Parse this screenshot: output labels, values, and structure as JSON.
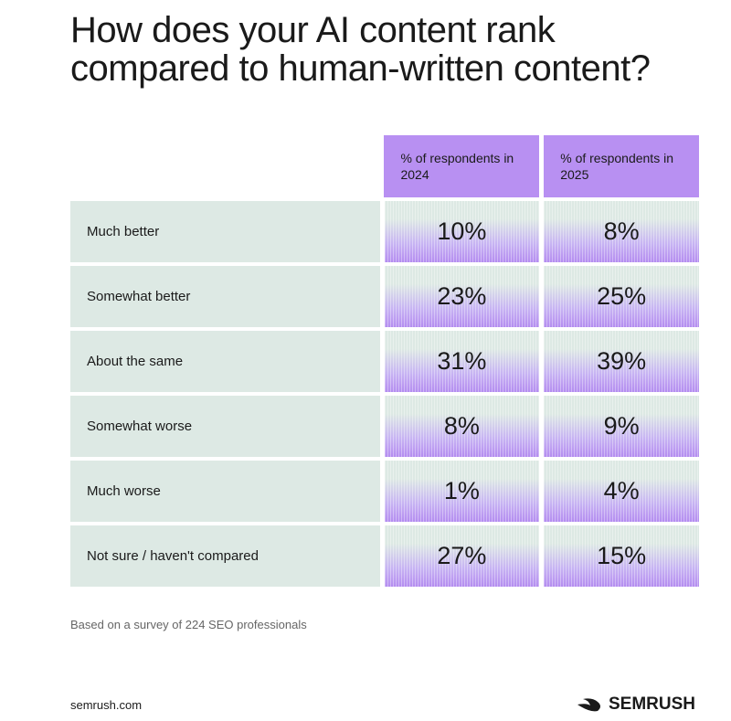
{
  "header": {
    "title": "How does your AI content rank compared to human-written content?"
  },
  "table": {
    "columns": [
      "% of respondents in 2024",
      "% of respondents in 2025"
    ],
    "rows": [
      {
        "label": "Much better",
        "cells": [
          "10%",
          "8%"
        ]
      },
      {
        "label": "Somewhat better",
        "cells": [
          "23%",
          "25%"
        ]
      },
      {
        "label": "About the same",
        "cells": [
          "31%",
          "39%"
        ]
      },
      {
        "label": "Somewhat worse",
        "cells": [
          "8%",
          "9%"
        ]
      },
      {
        "label": "Much worse",
        "cells": [
          "1%",
          "4%"
        ]
      },
      {
        "label": "Not sure / haven't compared",
        "cells": [
          "27%",
          "15%"
        ]
      }
    ]
  },
  "footer": {
    "note": "Based on a survey of 224 SEO professionals",
    "site": "semrush.com",
    "brand": "SEMRUSH"
  }
}
